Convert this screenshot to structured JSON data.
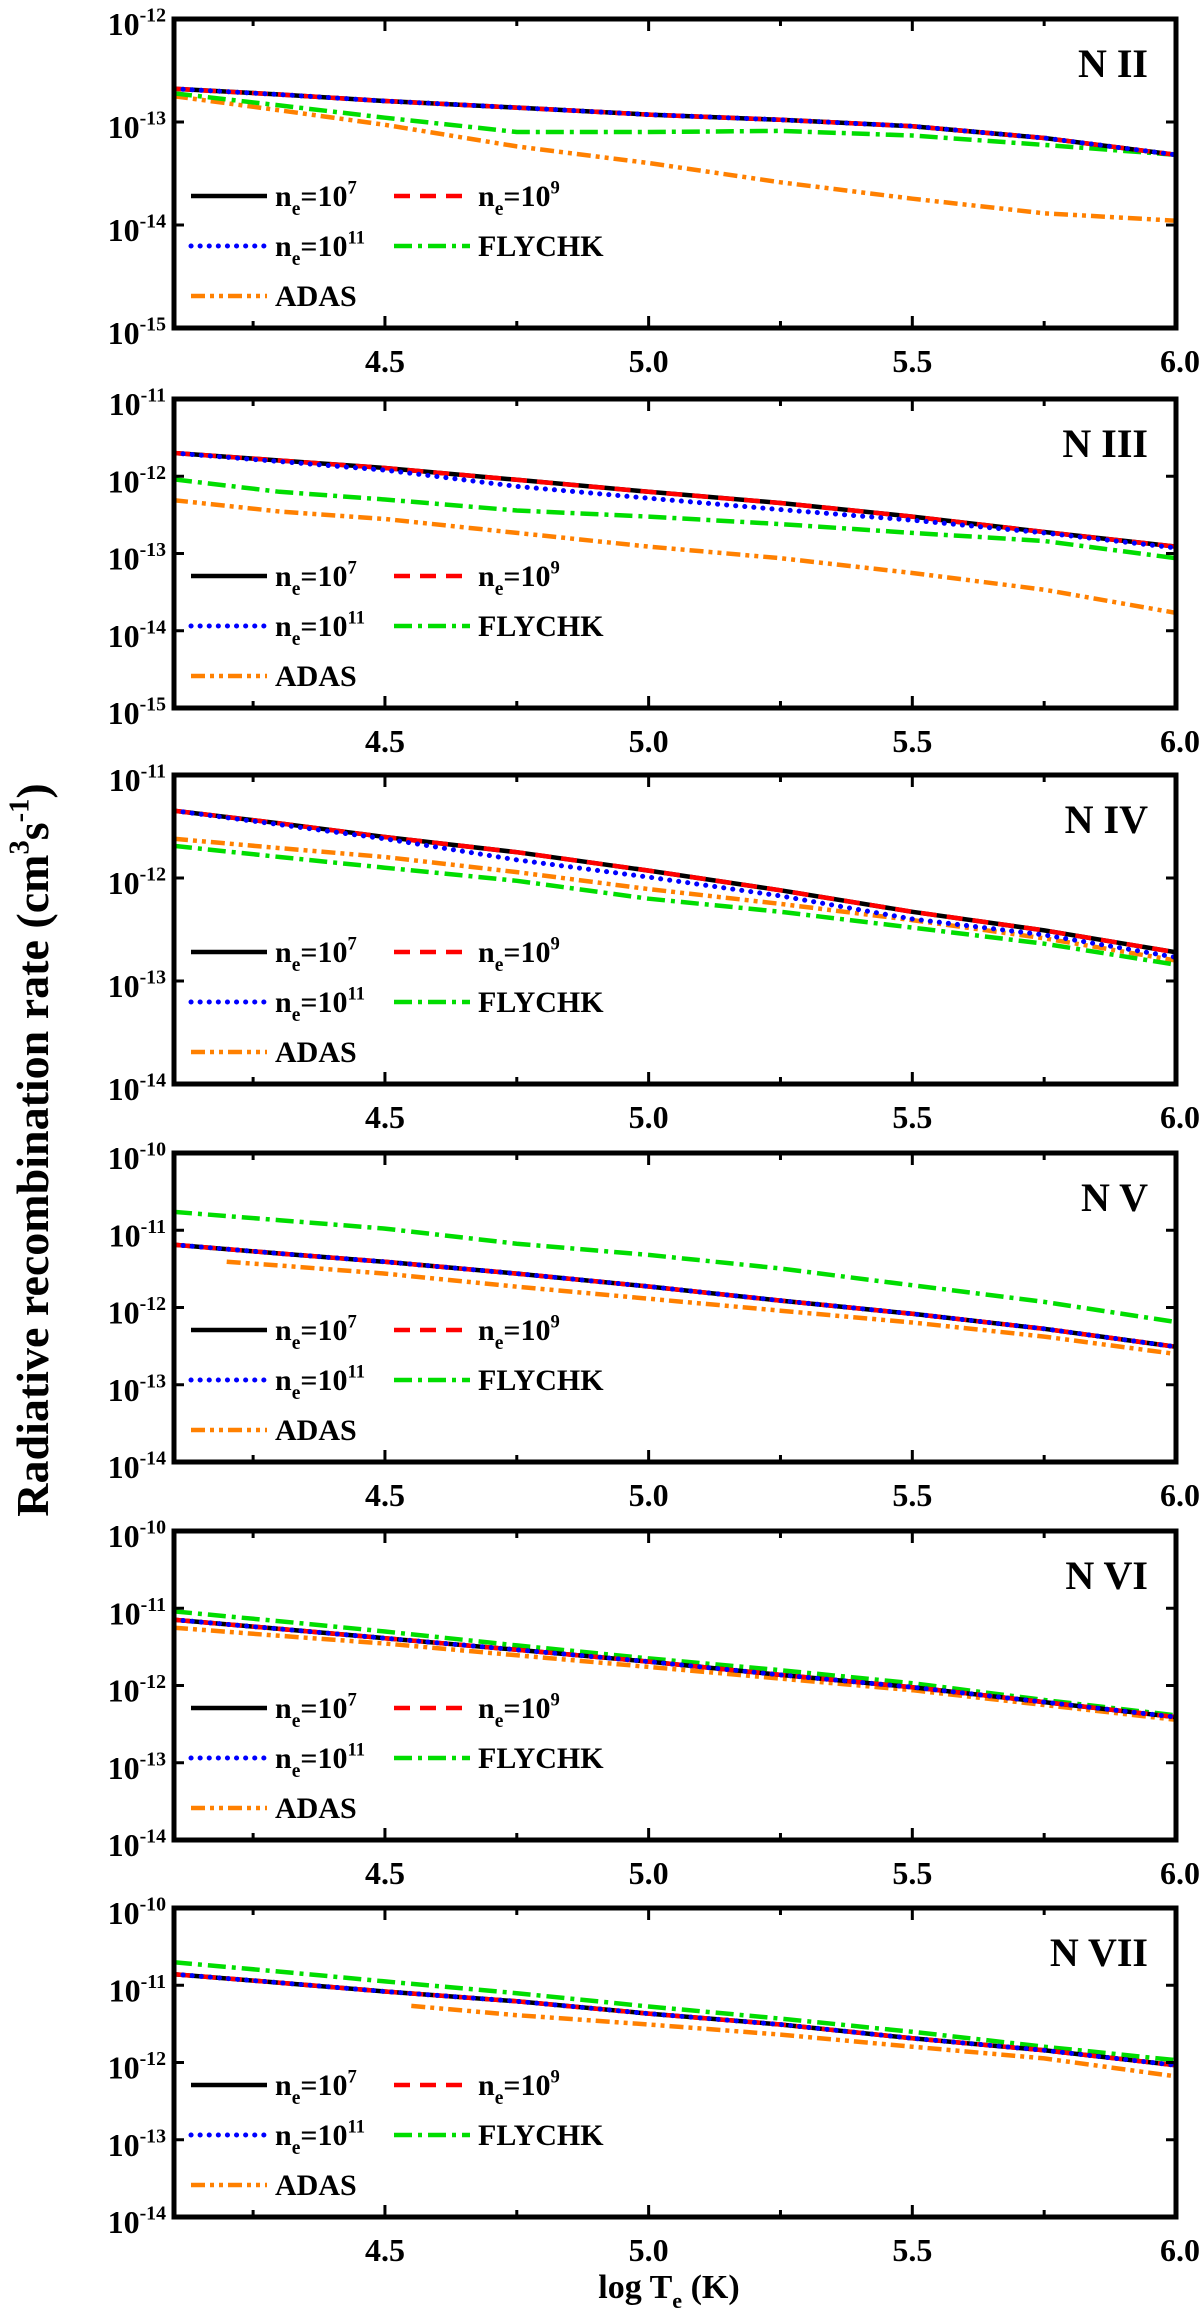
{
  "chart_data": {
    "type": "line",
    "ylabel": "Radiative recombination rate  (cm^3s^-1)",
    "xlabel": "log T_e (K)",
    "xlim": [
      4.1,
      6.0
    ],
    "xticks": [
      4.5,
      5.0,
      5.5,
      6.0
    ],
    "xtick_labels": [
      "4.5",
      "5.0",
      "5.5",
      "6.0"
    ],
    "yscale": "log",
    "grid": false,
    "legend_placement": "lower-left",
    "series_styles": [
      {
        "name": "n_e=10^7",
        "color": "#000000",
        "dash": "solid"
      },
      {
        "name": "n_e=10^9",
        "color": "#ff0000",
        "dash": "dashed"
      },
      {
        "name": "n_e=10^11",
        "color": "#0000ff",
        "dash": "dotted"
      },
      {
        "name": "FLYCHK",
        "color": "#00dd00",
        "dash": "dash-dot"
      },
      {
        "name": "ADAS",
        "color": "#ff8000",
        "dash": "dash-dot-dot"
      }
    ],
    "x": [
      4.1,
      4.3,
      4.5,
      4.75,
      5.0,
      5.25,
      5.5,
      5.75,
      6.0
    ],
    "panels": [
      {
        "title": "N II",
        "ylim": [
          1e-15,
          1e-12
        ],
        "ytick_labels": [
          "10^-15",
          "10^-14",
          "10^-13",
          "10^-12"
        ],
        "series": [
          {
            "name": "n_e=10^7",
            "y": [
              2.1e-13,
              1.85e-13,
              1.6e-13,
              1.38e-13,
              1.18e-13,
              1.05e-13,
              9.1e-14,
              7e-14,
              4.8e-14
            ]
          },
          {
            "name": "n_e=10^9",
            "y": [
              2.1e-13,
              1.85e-13,
              1.6e-13,
              1.38e-13,
              1.18e-13,
              1.05e-13,
              9.1e-14,
              7e-14,
              4.8e-14
            ]
          },
          {
            "name": "n_e=10^11",
            "y": [
              2.1e-13,
              1.85e-13,
              1.6e-13,
              1.38e-13,
              1.18e-13,
              1.05e-13,
              9.1e-14,
              7e-14,
              4.8e-14
            ]
          },
          {
            "name": "FLYCHK",
            "y": [
              1.9e-13,
              1.45e-13,
              1.1e-13,
              8e-14,
              8e-14,
              8.2e-14,
              7.4e-14,
              6e-14,
              4.8e-14
            ]
          },
          {
            "name": "ADAS",
            "y": [
              1.78e-13,
              1.3e-13,
              9.4e-14,
              5.8e-14,
              4e-14,
              2.6e-14,
              1.8e-14,
              1.3e-14,
              1.1e-14
            ]
          }
        ]
      },
      {
        "title": "N III",
        "ylim": [
          1e-15,
          1e-11
        ],
        "ytick_labels": [
          "10^-15",
          "10^-14",
          "10^-13",
          "10^-12",
          "10^-11"
        ],
        "series": [
          {
            "name": "n_e=10^7",
            "y": [
              2e-12,
              1.6e-12,
              1.28e-12,
              9e-13,
              6.3e-13,
              4.5e-13,
              3e-13,
              1.9e-13,
              1.23e-13
            ]
          },
          {
            "name": "n_e=10^9",
            "y": [
              2e-12,
              1.6e-12,
              1.28e-12,
              9e-13,
              6.3e-13,
              4.5e-13,
              3e-13,
              1.9e-13,
              1.23e-13
            ]
          },
          {
            "name": "n_e=10^11",
            "y": [
              2e-12,
              1.55e-12,
              1.2e-12,
              7.4e-13,
              5.2e-13,
              3.7e-13,
              2.7e-13,
              1.85e-13,
              1.18e-13
            ]
          },
          {
            "name": "FLYCHK",
            "y": [
              9.1e-13,
              6.3e-13,
              5e-13,
              3.6e-13,
              3e-13,
              2.4e-13,
              1.85e-13,
              1.45e-13,
              8.7e-14
            ]
          },
          {
            "name": "ADAS",
            "y": [
              4.9e-13,
              3.5e-13,
              2.8e-13,
              1.85e-13,
              1.23e-13,
              8.7e-14,
              5.6e-14,
              3.4e-14,
              1.7e-14
            ]
          }
        ]
      },
      {
        "title": "N IV",
        "ylim": [
          1e-14,
          1e-11
        ],
        "ytick_labels": [
          "10^-14",
          "10^-13",
          "10^-12",
          "10^-11"
        ],
        "series": [
          {
            "name": "n_e=10^7",
            "y": [
              4.5e-12,
              3.4e-12,
              2.5e-12,
              1.78e-12,
              1.18e-12,
              7.6e-13,
              4.7e-13,
              3.1e-13,
              1.9e-13
            ]
          },
          {
            "name": "n_e=10^9",
            "y": [
              4.5e-12,
              3.4e-12,
              2.5e-12,
              1.78e-12,
              1.18e-12,
              7.6e-13,
              4.7e-13,
              3.1e-13,
              1.9e-13
            ]
          },
          {
            "name": "n_e=10^11",
            "y": [
              4.5e-12,
              3.3e-12,
              2.4e-12,
              1.5e-12,
              1.02e-12,
              6.7e-13,
              4e-13,
              2.8e-13,
              1.7e-13
            ]
          },
          {
            "name": "FLYCHK",
            "y": [
              2.05e-12,
              1.6e-12,
              1.26e-12,
              9.4e-13,
              6.3e-13,
              4.7e-13,
              3.3e-13,
              2.3e-13,
              1.44e-13
            ]
          },
          {
            "name": "ADAS",
            "y": [
              2.4e-12,
              1.95e-12,
              1.6e-12,
              1.14e-12,
              7.8e-13,
              5.6e-13,
              3.9e-13,
              2.6e-13,
              1.58e-13
            ]
          }
        ]
      },
      {
        "title": "N V",
        "ylim": [
          1e-14,
          1e-10
        ],
        "ytick_labels": [
          "10^-14",
          "10^-13",
          "10^-12",
          "10^-11",
          "10^-10"
        ],
        "series": [
          {
            "name": "n_e=10^7",
            "y": [
              6.5e-12,
              5e-12,
              3.9e-12,
              2.75e-12,
              1.87e-12,
              1.23e-12,
              8.3e-13,
              5.3e-13,
              3.1e-13
            ]
          },
          {
            "name": "n_e=10^9",
            "y": [
              6.5e-12,
              5e-12,
              3.9e-12,
              2.75e-12,
              1.87e-12,
              1.23e-12,
              8.3e-13,
              5.3e-13,
              3.1e-13
            ]
          },
          {
            "name": "n_e=10^11",
            "y": [
              6.5e-12,
              5e-12,
              3.9e-12,
              2.75e-12,
              1.87e-12,
              1.23e-12,
              8.3e-13,
              5.3e-13,
              3.1e-13
            ]
          },
          {
            "name": "FLYCHK",
            "y": [
              1.73e-11,
              1.35e-11,
              1.05e-11,
              6.7e-12,
              4.8e-12,
              3.2e-12,
              1.94e-12,
              1.18e-12,
              6.5e-13
            ]
          },
          {
            "name": "ADAS",
            "x": [
              4.2,
              4.3,
              4.5,
              4.75,
              5.0,
              5.25,
              5.5,
              5.75,
              6.0
            ],
            "y": [
              3.9e-12,
              3.5e-12,
              2.75e-12,
              1.86e-12,
              1.3e-12,
              9.1e-13,
              6.4e-13,
              4.2e-13,
              2.5e-13
            ]
          }
        ]
      },
      {
        "title": "N VI",
        "ylim": [
          1e-14,
          1e-10
        ],
        "ytick_labels": [
          "10^-14",
          "10^-13",
          "10^-12",
          "10^-11",
          "10^-10"
        ],
        "series": [
          {
            "name": "n_e=10^7",
            "y": [
              7.1e-12,
              5.4e-12,
              4.1e-12,
              2.9e-12,
              2.04e-12,
              1.37e-12,
              9.5e-13,
              6.1e-13,
              3.9e-13
            ]
          },
          {
            "name": "n_e=10^9",
            "y": [
              7.1e-12,
              5.4e-12,
              4.1e-12,
              2.9e-12,
              2.04e-12,
              1.37e-12,
              9.5e-13,
              6.1e-13,
              3.9e-13
            ]
          },
          {
            "name": "n_e=10^11",
            "y": [
              7.1e-12,
              5.4e-12,
              4.1e-12,
              2.9e-12,
              2.04e-12,
              1.37e-12,
              9.5e-13,
              6.1e-13,
              3.9e-13
            ]
          },
          {
            "name": "FLYCHK",
            "y": [
              9.1e-12,
              6.8e-12,
              5e-12,
              3.3e-12,
              2.24e-12,
              1.58e-12,
              1.07e-12,
              6.5e-13,
              4.1e-13
            ]
          },
          {
            "name": "ADAS",
            "y": [
              5.6e-12,
              4.4e-12,
              3.5e-12,
              2.46e-12,
              1.74e-12,
              1.23e-12,
              8.7e-13,
              5.6e-13,
              3.6e-13
            ]
          }
        ]
      },
      {
        "title": "N VII",
        "ylim": [
          1e-14,
          1e-10
        ],
        "ytick_labels": [
          "10^-14",
          "10^-13",
          "10^-12",
          "10^-11",
          "10^-10"
        ],
        "series": [
          {
            "name": "n_e=10^7",
            "y": [
              1.39e-11,
              1.08e-11,
              8.3e-12,
              6.2e-12,
              4.3e-12,
              3.1e-12,
              2.06e-12,
              1.44e-12,
              9.2e-13
            ]
          },
          {
            "name": "n_e=10^9",
            "y": [
              1.39e-11,
              1.08e-11,
              8.3e-12,
              6.2e-12,
              4.3e-12,
              3.1e-12,
              2.06e-12,
              1.44e-12,
              9.2e-13
            ]
          },
          {
            "name": "n_e=10^11",
            "y": [
              1.39e-11,
              1.08e-11,
              8.3e-12,
              6.2e-12,
              4.3e-12,
              3.1e-12,
              2.06e-12,
              1.44e-12,
              9.2e-13
            ]
          },
          {
            "name": "FLYCHK",
            "y": [
              1.98e-11,
              1.5e-11,
              1.12e-11,
              7.9e-12,
              5.3e-12,
              3.7e-12,
              2.5e-12,
              1.6e-12,
              1.07e-12
            ]
          },
          {
            "name": "ADAS",
            "x": [
              4.55,
              4.75,
              5.0,
              5.25,
              5.5,
              5.75,
              6.0
            ],
            "y": [
              5.4e-12,
              4.1e-12,
              3.1e-12,
              2.3e-12,
              1.6e-12,
              1.13e-12,
              6.6e-13
            ]
          }
        ]
      }
    ]
  }
}
